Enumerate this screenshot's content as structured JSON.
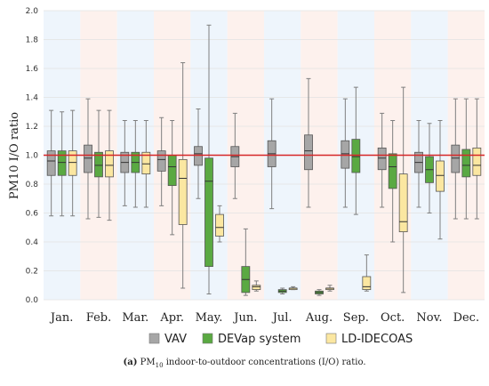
{
  "chart_data": {
    "type": "boxplot",
    "title": "",
    "ylabel": "PM10 I/O ratio",
    "xlabel": "",
    "ylim": [
      0,
      2.0
    ],
    "yticks": [
      "0.0",
      "0.2",
      "0.4",
      "0.6",
      "0.8",
      "1.0",
      "1.2",
      "1.4",
      "1.6",
      "1.8",
      "2.0"
    ],
    "reference_line": {
      "value": 1.0,
      "color": "#d62728"
    },
    "months": [
      "Jan.",
      "Feb.",
      "Mar.",
      "Apr.",
      "May.",
      "Jun.",
      "Jul.",
      "Aug.",
      "Sep.",
      "Oct.",
      "Nov.",
      "Dec."
    ],
    "background_bands": [
      "#eef5fc",
      "#fdf1ed",
      "#eef5fc",
      "#fdf1ed",
      "#eef5fc",
      "#fdf1ed",
      "#eef5fc",
      "#fdf1ed",
      "#eef5fc",
      "#fdf1ed",
      "#eef5fc",
      "#fdf1ed"
    ],
    "legend": {
      "placement": "bottom",
      "entries": [
        "VAV",
        "DEVap system",
        "LD-IDECOAS"
      ]
    },
    "series": [
      {
        "name": "VAV",
        "color": "#a6a6a6",
        "boxes": [
          {
            "min": 0.58,
            "q1": 0.86,
            "median": 0.96,
            "q3": 1.03,
            "max": 1.31
          },
          {
            "min": 0.56,
            "q1": 0.88,
            "median": 0.98,
            "q3": 1.07,
            "max": 1.39
          },
          {
            "min": 0.65,
            "q1": 0.88,
            "median": 0.95,
            "q3": 1.02,
            "max": 1.24
          },
          {
            "min": 0.65,
            "q1": 0.89,
            "median": 0.97,
            "q3": 1.03,
            "max": 1.26
          },
          {
            "min": 0.7,
            "q1": 0.93,
            "median": 1.01,
            "q3": 1.06,
            "max": 1.32
          },
          {
            "min": 0.7,
            "q1": 0.92,
            "median": 0.99,
            "q3": 1.06,
            "max": 1.29
          },
          {
            "min": 0.63,
            "q1": 0.92,
            "median": 1.01,
            "q3": 1.1,
            "max": 1.39
          },
          {
            "min": 0.64,
            "q1": 0.9,
            "median": 1.03,
            "q3": 1.14,
            "max": 1.53
          },
          {
            "min": 0.64,
            "q1": 0.91,
            "median": 1.01,
            "q3": 1.1,
            "max": 1.39
          },
          {
            "min": 0.64,
            "q1": 0.9,
            "median": 0.98,
            "q3": 1.05,
            "max": 1.29
          },
          {
            "min": 0.64,
            "q1": 0.88,
            "median": 0.95,
            "q3": 1.02,
            "max": 1.24
          },
          {
            "min": 0.56,
            "q1": 0.88,
            "median": 0.98,
            "q3": 1.07,
            "max": 1.39
          }
        ]
      },
      {
        "name": "DEVap system",
        "color": "#5aa942",
        "boxes": [
          {
            "min": 0.58,
            "q1": 0.86,
            "median": 0.95,
            "q3": 1.03,
            "max": 1.3
          },
          {
            "min": 0.57,
            "q1": 0.85,
            "median": 0.93,
            "q3": 1.02,
            "max": 1.31
          },
          {
            "min": 0.64,
            "q1": 0.88,
            "median": 0.95,
            "q3": 1.02,
            "max": 1.24
          },
          {
            "min": 0.45,
            "q1": 0.79,
            "median": 0.92,
            "q3": 1.0,
            "max": 1.24
          },
          {
            "min": 0.04,
            "q1": 0.23,
            "median": 0.82,
            "q3": 0.98,
            "max": 1.9
          },
          {
            "min": 0.03,
            "q1": 0.05,
            "median": 0.14,
            "q3": 0.23,
            "max": 0.49
          },
          {
            "min": 0.04,
            "q1": 0.05,
            "median": 0.06,
            "q3": 0.07,
            "max": 0.08
          },
          {
            "min": 0.03,
            "q1": 0.04,
            "median": 0.05,
            "q3": 0.06,
            "max": 0.07
          },
          {
            "min": 0.59,
            "q1": 0.88,
            "median": 0.99,
            "q3": 1.11,
            "max": 1.47
          },
          {
            "min": 0.4,
            "q1": 0.77,
            "median": 0.92,
            "q3": 1.01,
            "max": 1.24
          },
          {
            "min": 0.6,
            "q1": 0.81,
            "median": 0.9,
            "q3": 0.99,
            "max": 1.22
          },
          {
            "min": 0.56,
            "q1": 0.85,
            "median": 0.93,
            "q3": 1.04,
            "max": 1.39
          }
        ]
      },
      {
        "name": "LD-IDECOAS",
        "color": "#fbe7a1",
        "boxes": [
          {
            "min": 0.58,
            "q1": 0.86,
            "median": 0.95,
            "q3": 1.03,
            "max": 1.31
          },
          {
            "min": 0.55,
            "q1": 0.85,
            "median": 0.93,
            "q3": 1.03,
            "max": 1.31
          },
          {
            "min": 0.64,
            "q1": 0.87,
            "median": 0.94,
            "q3": 1.02,
            "max": 1.24
          },
          {
            "min": 0.08,
            "q1": 0.52,
            "median": 0.84,
            "q3": 0.97,
            "max": 1.64
          },
          {
            "min": 0.4,
            "q1": 0.44,
            "median": 0.5,
            "q3": 0.59,
            "max": 0.65
          },
          {
            "min": 0.06,
            "q1": 0.07,
            "median": 0.09,
            "q3": 0.1,
            "max": 0.13
          },
          {
            "min": 0.07,
            "q1": 0.07,
            "median": 0.08,
            "q3": 0.08,
            "max": 0.09
          },
          {
            "min": 0.06,
            "q1": 0.07,
            "median": 0.08,
            "q3": 0.08,
            "max": 0.1
          },
          {
            "min": 0.06,
            "q1": 0.07,
            "median": 0.09,
            "q3": 0.16,
            "max": 0.31
          },
          {
            "min": 0.05,
            "q1": 0.47,
            "median": 0.54,
            "q3": 0.87,
            "max": 1.47
          },
          {
            "min": 0.42,
            "q1": 0.75,
            "median": 0.86,
            "q3": 0.96,
            "max": 1.24
          },
          {
            "min": 0.56,
            "q1": 0.86,
            "median": 0.93,
            "q3": 1.05,
            "max": 1.39
          }
        ]
      }
    ]
  },
  "caption": {
    "label": "(a)",
    "text_before": "PM",
    "subscript": "10",
    "text_after": " indoor-to-outdoor concentrations (I/O) ratio."
  }
}
